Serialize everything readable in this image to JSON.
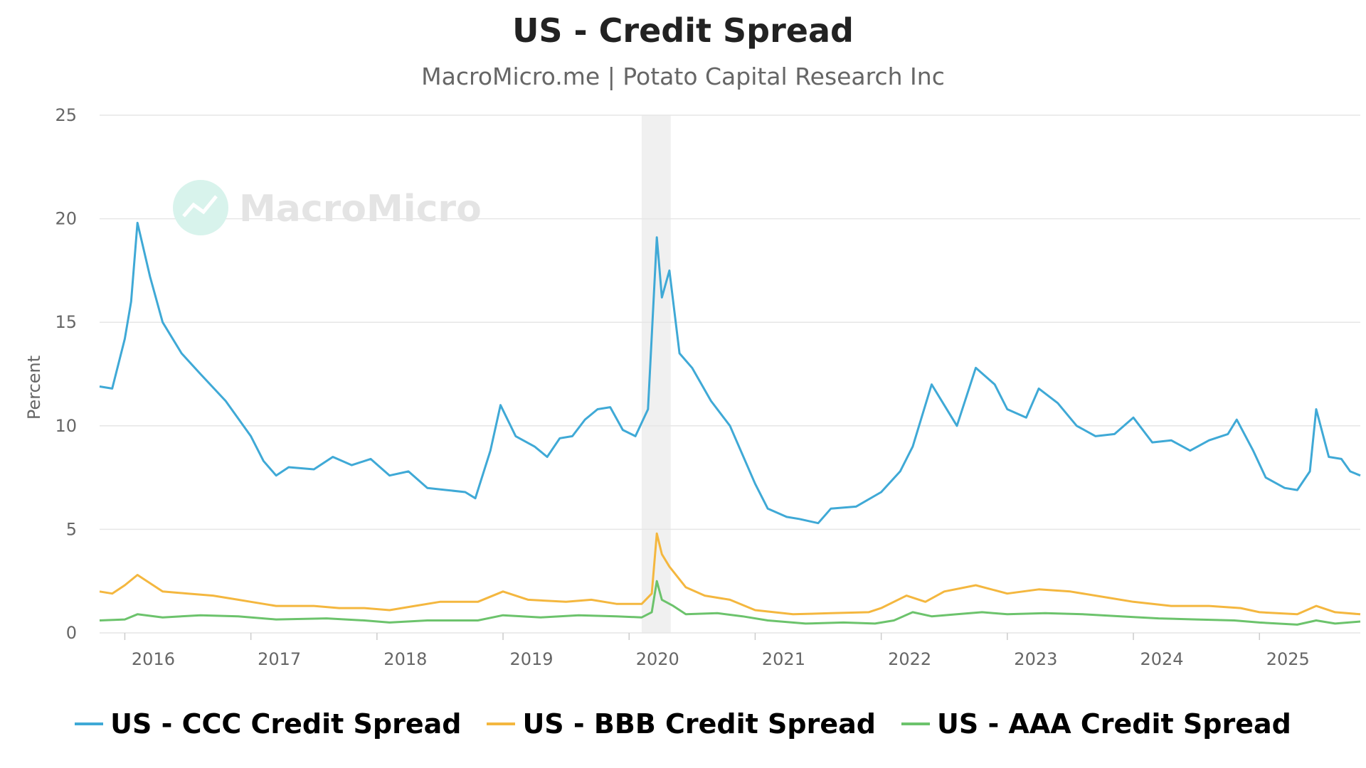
{
  "chart_data": {
    "type": "line",
    "title": "US - Credit Spread",
    "subtitle": "MacroMicro.me | Potato Capital Research Inc",
    "ylabel": "Percent",
    "xlabel": "",
    "watermark": "MacroMicro",
    "ylim": [
      0,
      25
    ],
    "xlim": [
      2015.8,
      2025.8
    ],
    "yticks": [
      "0",
      "5",
      "10",
      "15",
      "20",
      "25"
    ],
    "xticks": [
      "2016",
      "2017",
      "2018",
      "2019",
      "2020",
      "2021",
      "2022",
      "2023",
      "2024",
      "2025"
    ],
    "grid": true,
    "legend_position": "bottom",
    "recession_band": [
      2020.1,
      2020.33
    ],
    "colors": {
      "ccc": "#3fa9d6",
      "bbb": "#f4b73f",
      "aaa": "#6cc36c",
      "band": "#f0f0f0",
      "grid": "#e6e6e6"
    },
    "series": [
      {
        "name": "US - CCC Credit Spread",
        "color": "#3fa9d6",
        "points": [
          [
            2015.8,
            11.9
          ],
          [
            2015.9,
            11.8
          ],
          [
            2016.0,
            14.2
          ],
          [
            2016.05,
            16.0
          ],
          [
            2016.1,
            19.8
          ],
          [
            2016.2,
            17.2
          ],
          [
            2016.3,
            15.0
          ],
          [
            2016.45,
            13.5
          ],
          [
            2016.6,
            12.5
          ],
          [
            2016.8,
            11.2
          ],
          [
            2017.0,
            9.5
          ],
          [
            2017.1,
            8.3
          ],
          [
            2017.2,
            7.6
          ],
          [
            2017.3,
            8.0
          ],
          [
            2017.5,
            7.9
          ],
          [
            2017.65,
            8.5
          ],
          [
            2017.8,
            8.1
          ],
          [
            2017.95,
            8.4
          ],
          [
            2018.1,
            7.6
          ],
          [
            2018.25,
            7.8
          ],
          [
            2018.4,
            7.0
          ],
          [
            2018.55,
            6.9
          ],
          [
            2018.7,
            6.8
          ],
          [
            2018.78,
            6.5
          ],
          [
            2018.9,
            8.8
          ],
          [
            2018.98,
            11.0
          ],
          [
            2019.1,
            9.5
          ],
          [
            2019.25,
            9.0
          ],
          [
            2019.35,
            8.5
          ],
          [
            2019.45,
            9.4
          ],
          [
            2019.55,
            9.5
          ],
          [
            2019.65,
            10.3
          ],
          [
            2019.75,
            10.8
          ],
          [
            2019.85,
            10.9
          ],
          [
            2019.95,
            9.8
          ],
          [
            2020.05,
            9.5
          ],
          [
            2020.15,
            10.8
          ],
          [
            2020.22,
            19.1
          ],
          [
            2020.26,
            16.2
          ],
          [
            2020.32,
            17.5
          ],
          [
            2020.4,
            13.5
          ],
          [
            2020.5,
            12.8
          ],
          [
            2020.65,
            11.2
          ],
          [
            2020.8,
            10.0
          ],
          [
            2021.0,
            7.2
          ],
          [
            2021.1,
            6.0
          ],
          [
            2021.25,
            5.6
          ],
          [
            2021.35,
            5.5
          ],
          [
            2021.5,
            5.3
          ],
          [
            2021.6,
            6.0
          ],
          [
            2021.8,
            6.1
          ],
          [
            2022.0,
            6.8
          ],
          [
            2022.15,
            7.8
          ],
          [
            2022.25,
            9.0
          ],
          [
            2022.4,
            12.0
          ],
          [
            2022.5,
            11.0
          ],
          [
            2022.6,
            10.0
          ],
          [
            2022.75,
            12.8
          ],
          [
            2022.9,
            12.0
          ],
          [
            2023.0,
            10.8
          ],
          [
            2023.15,
            10.4
          ],
          [
            2023.25,
            11.8
          ],
          [
            2023.4,
            11.1
          ],
          [
            2023.55,
            10.0
          ],
          [
            2023.7,
            9.5
          ],
          [
            2023.85,
            9.6
          ],
          [
            2024.0,
            10.4
          ],
          [
            2024.15,
            9.2
          ],
          [
            2024.3,
            9.3
          ],
          [
            2024.45,
            8.8
          ],
          [
            2024.6,
            9.3
          ],
          [
            2024.75,
            9.6
          ],
          [
            2024.82,
            10.3
          ],
          [
            2024.95,
            8.8
          ],
          [
            2025.05,
            7.5
          ],
          [
            2025.2,
            7.0
          ],
          [
            2025.3,
            6.9
          ],
          [
            2025.4,
            7.8
          ],
          [
            2025.45,
            10.8
          ],
          [
            2025.55,
            8.5
          ],
          [
            2025.65,
            8.4
          ],
          [
            2025.72,
            7.8
          ],
          [
            2025.8,
            7.6
          ]
        ]
      },
      {
        "name": "US - BBB Credit Spread",
        "color": "#f4b73f",
        "points": [
          [
            2015.8,
            2.0
          ],
          [
            2015.9,
            1.9
          ],
          [
            2016.0,
            2.3
          ],
          [
            2016.1,
            2.8
          ],
          [
            2016.2,
            2.4
          ],
          [
            2016.3,
            2.0
          ],
          [
            2016.5,
            1.9
          ],
          [
            2016.7,
            1.8
          ],
          [
            2016.9,
            1.6
          ],
          [
            2017.0,
            1.5
          ],
          [
            2017.2,
            1.3
          ],
          [
            2017.5,
            1.3
          ],
          [
            2017.7,
            1.2
          ],
          [
            2017.9,
            1.2
          ],
          [
            2018.1,
            1.1
          ],
          [
            2018.3,
            1.3
          ],
          [
            2018.5,
            1.5
          ],
          [
            2018.8,
            1.5
          ],
          [
            2019.0,
            2.0
          ],
          [
            2019.2,
            1.6
          ],
          [
            2019.5,
            1.5
          ],
          [
            2019.7,
            1.6
          ],
          [
            2019.9,
            1.4
          ],
          [
            2020.1,
            1.4
          ],
          [
            2020.18,
            1.9
          ],
          [
            2020.22,
            4.8
          ],
          [
            2020.26,
            3.8
          ],
          [
            2020.32,
            3.2
          ],
          [
            2020.45,
            2.2
          ],
          [
            2020.6,
            1.8
          ],
          [
            2020.8,
            1.6
          ],
          [
            2021.0,
            1.1
          ],
          [
            2021.3,
            0.9
          ],
          [
            2021.6,
            0.95
          ],
          [
            2021.9,
            1.0
          ],
          [
            2022.0,
            1.2
          ],
          [
            2022.2,
            1.8
          ],
          [
            2022.35,
            1.5
          ],
          [
            2022.5,
            2.0
          ],
          [
            2022.75,
            2.3
          ],
          [
            2023.0,
            1.9
          ],
          [
            2023.25,
            2.1
          ],
          [
            2023.5,
            2.0
          ],
          [
            2023.8,
            1.7
          ],
          [
            2024.0,
            1.5
          ],
          [
            2024.3,
            1.3
          ],
          [
            2024.6,
            1.3
          ],
          [
            2024.85,
            1.2
          ],
          [
            2025.0,
            1.0
          ],
          [
            2025.3,
            0.9
          ],
          [
            2025.45,
            1.3
          ],
          [
            2025.6,
            1.0
          ],
          [
            2025.8,
            0.9
          ]
        ]
      },
      {
        "name": "US - AAA Credit Spread",
        "color": "#6cc36c",
        "points": [
          [
            2015.8,
            0.6
          ],
          [
            2016.0,
            0.65
          ],
          [
            2016.1,
            0.9
          ],
          [
            2016.3,
            0.75
          ],
          [
            2016.6,
            0.85
          ],
          [
            2016.9,
            0.8
          ],
          [
            2017.2,
            0.65
          ],
          [
            2017.6,
            0.7
          ],
          [
            2017.9,
            0.6
          ],
          [
            2018.1,
            0.5
          ],
          [
            2018.4,
            0.6
          ],
          [
            2018.8,
            0.6
          ],
          [
            2019.0,
            0.85
          ],
          [
            2019.3,
            0.75
          ],
          [
            2019.6,
            0.85
          ],
          [
            2019.9,
            0.8
          ],
          [
            2020.1,
            0.75
          ],
          [
            2020.18,
            1.0
          ],
          [
            2020.22,
            2.5
          ],
          [
            2020.26,
            1.6
          ],
          [
            2020.35,
            1.3
          ],
          [
            2020.45,
            0.9
          ],
          [
            2020.7,
            0.95
          ],
          [
            2020.9,
            0.8
          ],
          [
            2021.1,
            0.6
          ],
          [
            2021.4,
            0.45
          ],
          [
            2021.7,
            0.5
          ],
          [
            2021.95,
            0.45
          ],
          [
            2022.1,
            0.6
          ],
          [
            2022.25,
            1.0
          ],
          [
            2022.4,
            0.8
          ],
          [
            2022.6,
            0.9
          ],
          [
            2022.8,
            1.0
          ],
          [
            2023.0,
            0.9
          ],
          [
            2023.3,
            0.95
          ],
          [
            2023.6,
            0.9
          ],
          [
            2023.9,
            0.8
          ],
          [
            2024.2,
            0.7
          ],
          [
            2024.5,
            0.65
          ],
          [
            2024.8,
            0.6
          ],
          [
            2025.0,
            0.5
          ],
          [
            2025.3,
            0.4
          ],
          [
            2025.45,
            0.6
          ],
          [
            2025.6,
            0.45
          ],
          [
            2025.8,
            0.55
          ]
        ]
      }
    ]
  }
}
